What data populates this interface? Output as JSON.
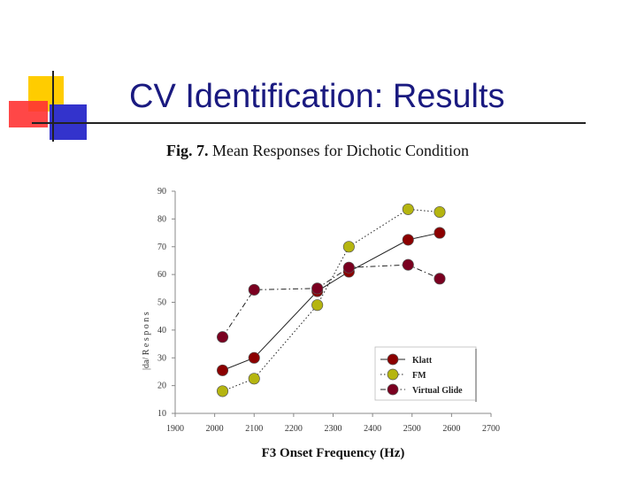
{
  "slide": {
    "title": "CV Identification:  Results"
  },
  "colors": {
    "title": "#1a1a80",
    "klatt": "#8b0000",
    "fm": "#b5b510",
    "virtual_glide": "#7a0020"
  },
  "chart_data": {
    "type": "line",
    "fig_label": "Fig. 7.",
    "title": "Mean Responses for Dichotic Condition",
    "xlabel": "F3 Onset Frequency (Hz)",
    "ylabel": "Percent /da/ Responses",
    "ylabel_visible_glyphs": "|da/ R e s p o n s",
    "xlim": [
      1900,
      2700
    ],
    "ylim": [
      10,
      90
    ],
    "xticks": [
      1900,
      2000,
      2100,
      2200,
      2300,
      2400,
      2500,
      2600,
      2700
    ],
    "yticks": [
      10,
      20,
      30,
      40,
      50,
      60,
      70,
      80,
      90
    ],
    "legend_position": "bottom-right",
    "series": [
      {
        "name": "Klatt",
        "line_style": "solid",
        "points": [
          [
            2020,
            25.5
          ],
          [
            2100,
            30
          ],
          [
            2260,
            54
          ],
          [
            2340,
            61
          ],
          [
            2490,
            72.5
          ],
          [
            2570,
            75
          ]
        ]
      },
      {
        "name": "FM",
        "line_style": "dotted",
        "points": [
          [
            2020,
            18
          ],
          [
            2100,
            22.5
          ],
          [
            2260,
            49
          ],
          [
            2340,
            70
          ],
          [
            2490,
            83.5
          ],
          [
            2570,
            82.5
          ]
        ]
      },
      {
        "name": "Virtual Glide",
        "line_style": "dashdot",
        "points": [
          [
            2020,
            37.5
          ],
          [
            2100,
            54.5
          ],
          [
            2260,
            55
          ],
          [
            2340,
            62.5
          ],
          [
            2490,
            63.5
          ],
          [
            2570,
            58.5
          ]
        ]
      }
    ]
  }
}
